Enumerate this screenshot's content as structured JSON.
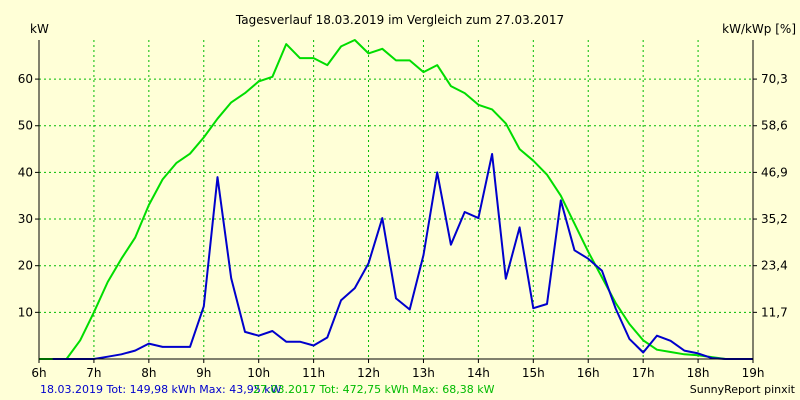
{
  "chart_data": {
    "type": "line",
    "title": "Tagesverlauf 18.03.2019 im Vergleich zum 27.03.2017",
    "ylabel_left": "kW",
    "ylabel_right": "kW/kWp [%]",
    "ylim": [
      0,
      68.38
    ],
    "grid": true,
    "x_ticks": [
      "6h",
      "7h",
      "8h",
      "9h",
      "10h",
      "11h",
      "12h",
      "13h",
      "14h",
      "15h",
      "16h",
      "17h",
      "18h",
      "19h"
    ],
    "y_ticks_left": [
      "10",
      "20",
      "30",
      "40",
      "50",
      "60"
    ],
    "y_ticks_left_values": [
      10,
      20,
      30,
      40,
      50,
      60
    ],
    "y_ticks_right": [
      "11,7",
      "23,4",
      "35,2",
      "46,9",
      "58,6",
      "70,3"
    ],
    "y_ticks_right_values": [
      10,
      20,
      30,
      40,
      50,
      60
    ],
    "series": [
      {
        "name": "18.03.2019",
        "color": "#0000cc",
        "x": [
          6.25,
          6.5,
          6.75,
          7.0,
          7.25,
          7.5,
          7.75,
          8.0,
          8.25,
          8.5,
          8.75,
          9.0,
          9.25,
          9.5,
          9.75,
          10.0,
          10.25,
          10.5,
          10.75,
          11.0,
          11.25,
          11.5,
          11.75,
          12.0,
          12.25,
          12.5,
          12.75,
          13.0,
          13.25,
          13.5,
          13.75,
          14.0,
          14.25,
          14.5,
          14.75,
          15.0,
          15.25,
          15.5,
          15.75,
          16.0,
          16.25,
          16.5,
          16.75,
          17.0,
          17.25,
          17.5,
          17.75,
          18.0,
          18.25,
          18.5,
          18.75,
          19.0
        ],
        "values": [
          0,
          0,
          0,
          0,
          0.5,
          1,
          1.8,
          3.3,
          2.6,
          2.6,
          2.6,
          11.3,
          39,
          17.3,
          5.8,
          5,
          6,
          3.7,
          3.7,
          2.9,
          4.6,
          12.6,
          15.2,
          20.5,
          30.2,
          13,
          10.6,
          22.3,
          40,
          24.5,
          31.5,
          30.2,
          43.95,
          17.2,
          28.2,
          10.9,
          11.8,
          34,
          23.3,
          21.5,
          18.9,
          10.8,
          4.3,
          1.4,
          5,
          3.9,
          1.8,
          1.2,
          0.2,
          0,
          0,
          0
        ]
      },
      {
        "name": "27.03.2017",
        "color": "#00dd00",
        "x": [
          6.0,
          6.5,
          6.75,
          7.0,
          7.25,
          7.5,
          7.75,
          8.0,
          8.25,
          8.5,
          8.75,
          9.0,
          9.25,
          9.5,
          9.75,
          10.0,
          10.25,
          10.5,
          10.75,
          11.0,
          11.25,
          11.5,
          11.75,
          12.0,
          12.25,
          12.5,
          12.75,
          13.0,
          13.25,
          13.5,
          13.75,
          14.0,
          14.25,
          14.5,
          14.75,
          15.0,
          15.25,
          15.5,
          15.75,
          16.0,
          16.25,
          16.5,
          16.75,
          17.0,
          17.25,
          17.5,
          17.75,
          18.0,
          18.25,
          18.5,
          18.75,
          19.0
        ],
        "values": [
          0,
          0,
          4,
          10,
          16.5,
          21.5,
          26,
          33,
          38.5,
          42,
          44,
          47.5,
          51.5,
          55,
          57,
          59.5,
          60.5,
          67.5,
          64.5,
          64.5,
          63,
          67,
          68.38,
          65.5,
          66.5,
          64,
          64,
          61.5,
          63,
          58.5,
          57,
          54.5,
          53.5,
          50.5,
          45,
          42.5,
          39.5,
          35,
          29,
          23,
          17.5,
          12,
          7.5,
          4,
          2,
          1.5,
          1,
          0.8,
          0.4,
          0,
          0,
          0
        ]
      }
    ],
    "footer": {
      "legend_2019": "18.03.2019 Tot: 149,98 kWh Max: 43,95 kW",
      "legend_2017": "27.03.2017 Tot: 472,75 kWh Max: 68,38 kW",
      "credit": "SunnyReport pinxit"
    }
  }
}
